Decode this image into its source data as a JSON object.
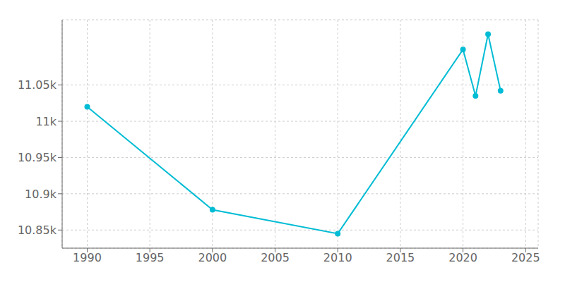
{
  "chart_data": {
    "type": "line",
    "x": [
      1990,
      2000,
      2010,
      2020,
      2021,
      2022,
      2023
    ],
    "values": [
      11020,
      10878,
      10845,
      11099,
      11035,
      11120,
      11042
    ],
    "color": "#00BCD4",
    "marker": "circle",
    "xlim": [
      1988,
      2026
    ],
    "xticks": [
      1990,
      1995,
      2000,
      2005,
      2010,
      2015,
      2020,
      2025
    ],
    "ylim": [
      10825,
      11140
    ],
    "yticks": [
      {
        "value": 10850,
        "label": "10.85k"
      },
      {
        "value": 10900,
        "label": "10.9k"
      },
      {
        "value": 10950,
        "label": "10.95k"
      },
      {
        "value": 11000,
        "label": "11k"
      },
      {
        "value": 11050,
        "label": "11.05k"
      }
    ],
    "grid": true
  }
}
